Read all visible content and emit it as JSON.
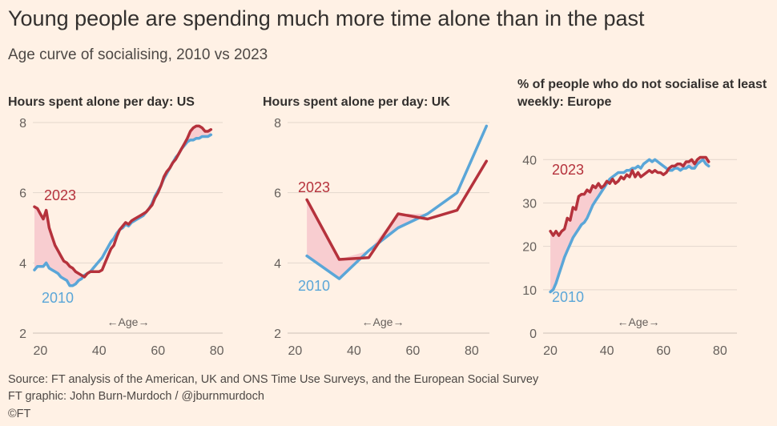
{
  "title": "Young people are spending much more time alone than in the past",
  "subtitle": "Age curve of socialising, 2010 vs 2023",
  "source": "Source: FT analysis of the American, UK and ONS Time Use Surveys, and the European Social Survey",
  "credit": "FT graphic: John Burn-Murdoch / @jburnmurdoch",
  "copyright": "©FT",
  "colors": {
    "background": "#fff1e5",
    "series_2010": "#5aa6d8",
    "series_2023": "#b5323c",
    "gap_fill": "#f8cdd0",
    "grid": "#e3d6cc",
    "axis_text": "#66605c"
  },
  "chart_data": [
    {
      "type": "line",
      "title": "Hours spent alone per day: US",
      "xlabel": "←Age→",
      "ylabel": "",
      "xlim": [
        18,
        82
      ],
      "ylim": [
        2,
        8
      ],
      "xticks": [
        20,
        40,
        60,
        80
      ],
      "yticks": [
        2,
        4,
        6,
        8
      ],
      "series": [
        {
          "name": "2010",
          "x": [
            18,
            19,
            20,
            21,
            22,
            23,
            24,
            25,
            26,
            27,
            28,
            29,
            30,
            31,
            32,
            33,
            34,
            35,
            36,
            37,
            38,
            39,
            40,
            41,
            42,
            43,
            44,
            45,
            46,
            47,
            48,
            49,
            50,
            51,
            52,
            53,
            54,
            55,
            56,
            57,
            58,
            59,
            60,
            61,
            62,
            63,
            64,
            65,
            66,
            67,
            68,
            69,
            70,
            71,
            72,
            73,
            74,
            75,
            76,
            77,
            78
          ],
          "y": [
            3.8,
            3.9,
            3.9,
            3.9,
            4.0,
            3.85,
            3.8,
            3.75,
            3.7,
            3.6,
            3.55,
            3.5,
            3.35,
            3.35,
            3.4,
            3.5,
            3.55,
            3.65,
            3.7,
            3.75,
            3.85,
            3.95,
            4.05,
            4.15,
            4.3,
            4.45,
            4.6,
            4.7,
            4.85,
            4.95,
            5.0,
            5.1,
            5.05,
            5.15,
            5.2,
            5.25,
            5.3,
            5.35,
            5.45,
            5.55,
            5.7,
            5.9,
            6.05,
            6.2,
            6.4,
            6.55,
            6.7,
            6.85,
            7.0,
            7.1,
            7.25,
            7.35,
            7.45,
            7.5,
            7.5,
            7.55,
            7.55,
            7.6,
            7.6,
            7.6,
            7.65
          ]
        },
        {
          "name": "2023",
          "x": [
            18,
            19,
            20,
            21,
            22,
            23,
            24,
            25,
            26,
            27,
            28,
            29,
            30,
            31,
            32,
            33,
            34,
            35,
            36,
            37,
            38,
            39,
            40,
            41,
            42,
            43,
            44,
            45,
            46,
            47,
            48,
            49,
            50,
            51,
            52,
            53,
            54,
            55,
            56,
            57,
            58,
            59,
            60,
            61,
            62,
            63,
            64,
            65,
            66,
            67,
            68,
            69,
            70,
            71,
            72,
            73,
            74,
            75,
            76,
            77,
            78
          ],
          "y": [
            5.6,
            5.55,
            5.4,
            5.25,
            5.5,
            5.0,
            4.75,
            4.5,
            4.35,
            4.2,
            4.05,
            4.0,
            3.9,
            3.85,
            3.75,
            3.7,
            3.65,
            3.6,
            3.7,
            3.75,
            3.75,
            3.75,
            3.75,
            3.8,
            4.0,
            4.2,
            4.4,
            4.5,
            4.75,
            4.95,
            5.05,
            5.15,
            5.1,
            5.2,
            5.25,
            5.3,
            5.35,
            5.4,
            5.45,
            5.55,
            5.65,
            5.85,
            6.0,
            6.2,
            6.45,
            6.6,
            6.7,
            6.85,
            6.95,
            7.1,
            7.25,
            7.4,
            7.55,
            7.75,
            7.85,
            7.9,
            7.9,
            7.85,
            7.75,
            7.75,
            7.8
          ]
        }
      ],
      "annotations": [
        "2023",
        "2010"
      ]
    },
    {
      "type": "line",
      "title": "Hours spent alone per day: UK",
      "xlabel": "←Age→",
      "ylabel": "",
      "xlim": [
        18,
        86
      ],
      "ylim": [
        2,
        8
      ],
      "xticks": [
        20,
        40,
        60,
        80
      ],
      "yticks": [
        2,
        4,
        6,
        8
      ],
      "series": [
        {
          "name": "2010",
          "x": [
            24,
            35,
            45,
            55,
            65,
            75,
            85
          ],
          "y": [
            4.2,
            3.55,
            4.35,
            5.0,
            5.4,
            6.0,
            7.9
          ]
        },
        {
          "name": "2023",
          "x": [
            24,
            35,
            45,
            55,
            65,
            75,
            85
          ],
          "y": [
            5.8,
            4.1,
            4.15,
            5.4,
            5.25,
            5.5,
            6.9
          ]
        }
      ],
      "annotations": [
        "2023",
        "2010"
      ]
    },
    {
      "type": "line",
      "title": "% of people who do not socialise at least weekly: Europe",
      "xlabel": "←Age→",
      "ylabel": "",
      "xlim": [
        18,
        86
      ],
      "ylim": [
        0,
        43
      ],
      "xticks": [
        20,
        40,
        60,
        80
      ],
      "yticks": [
        0,
        10,
        20,
        30,
        40
      ],
      "series": [
        {
          "name": "2010",
          "x": [
            20,
            21,
            22,
            23,
            24,
            25,
            26,
            27,
            28,
            29,
            30,
            31,
            32,
            33,
            34,
            35,
            36,
            37,
            38,
            39,
            40,
            41,
            42,
            43,
            44,
            45,
            46,
            47,
            48,
            49,
            50,
            51,
            52,
            53,
            54,
            55,
            56,
            57,
            58,
            59,
            60,
            61,
            62,
            63,
            64,
            65,
            66,
            67,
            68,
            69,
            70,
            71,
            72,
            73,
            74,
            75,
            76
          ],
          "y": [
            9.5,
            10,
            11.5,
            13.5,
            15.5,
            17.5,
            19,
            20.5,
            22,
            23,
            24,
            25,
            25.5,
            26.5,
            28,
            29.5,
            30.5,
            31.5,
            32.5,
            33.5,
            34.5,
            35.5,
            36,
            36.5,
            37,
            37,
            37,
            37.5,
            37.5,
            38,
            38,
            38.5,
            38,
            39,
            39.5,
            40,
            39.5,
            40,
            39.5,
            39,
            38.5,
            38,
            37.5,
            37.5,
            38,
            38,
            37.5,
            38,
            38,
            38.5,
            38,
            38,
            39,
            39.5,
            40,
            39,
            38.5
          ]
        },
        {
          "name": "2023",
          "x": [
            20,
            21,
            22,
            23,
            24,
            25,
            26,
            27,
            28,
            29,
            30,
            31,
            32,
            33,
            34,
            35,
            36,
            37,
            38,
            39,
            40,
            41,
            42,
            43,
            44,
            45,
            46,
            47,
            48,
            49,
            50,
            51,
            52,
            53,
            54,
            55,
            56,
            57,
            58,
            59,
            60,
            61,
            62,
            63,
            64,
            65,
            66,
            67,
            68,
            69,
            70,
            71,
            72,
            73,
            74,
            75,
            76
          ],
          "y": [
            23.5,
            22.5,
            23.5,
            22.5,
            23.5,
            24,
            26.5,
            26,
            29,
            28.5,
            31.5,
            32,
            32,
            33,
            32.5,
            34,
            33.5,
            34.5,
            33.5,
            34,
            35,
            34.5,
            35.5,
            34.5,
            35,
            36,
            35.5,
            36.5,
            36,
            37.5,
            36,
            37,
            36,
            36.5,
            37,
            37.5,
            37,
            37.5,
            37,
            37,
            36.5,
            37,
            38,
            38.5,
            38.5,
            39,
            39,
            38.5,
            39.5,
            39.5,
            40,
            39,
            40,
            40.5,
            40.5,
            40.5,
            39.5
          ]
        }
      ],
      "annotations": [
        "2023",
        "2010"
      ]
    }
  ]
}
